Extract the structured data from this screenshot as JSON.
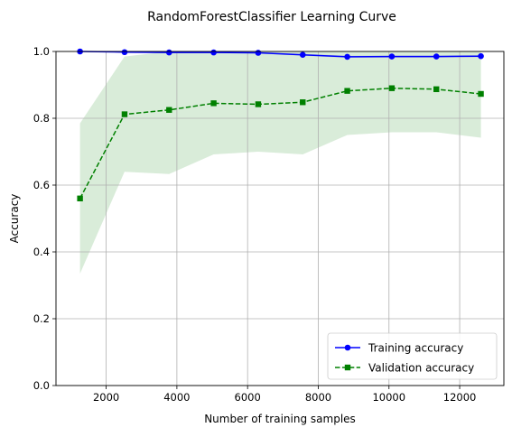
{
  "chart_data": {
    "type": "line",
    "title": "RandomForestClassifier Learning Curve",
    "xlabel": "Number of training samples",
    "ylabel": "Accuracy",
    "xlim": [
      580,
      13250
    ],
    "ylim": [
      0.0,
      1.0
    ],
    "xticks": [
      2000,
      4000,
      6000,
      8000,
      10000,
      12000
    ],
    "yticks": [
      0.0,
      0.2,
      0.4,
      0.6,
      0.8,
      1.0
    ],
    "grid": true,
    "legend_position": "lower-right",
    "x": [
      1260,
      2520,
      3780,
      5040,
      6300,
      7560,
      8820,
      10080,
      11340,
      12600
    ],
    "series": [
      {
        "name": "Training accuracy",
        "color": "#0000ff",
        "linestyle": "solid",
        "marker": "circle",
        "values": [
          1.0,
          0.998,
          0.997,
          0.997,
          0.996,
          0.99,
          0.984,
          0.985,
          0.985,
          0.986
        ],
        "band_lower": [
          1.0,
          0.997,
          0.995,
          0.995,
          0.994,
          0.987,
          0.981,
          0.982,
          0.982,
          0.983
        ],
        "band_upper": [
          1.0,
          0.999,
          0.999,
          0.999,
          0.998,
          0.993,
          0.987,
          0.988,
          0.988,
          0.989
        ],
        "band_color": "#0000ff"
      },
      {
        "name": "Validation accuracy",
        "color": "#008000",
        "linestyle": "dashed",
        "marker": "square",
        "values": [
          0.56,
          0.812,
          0.825,
          0.845,
          0.842,
          0.848,
          0.882,
          0.89,
          0.887,
          0.873
        ],
        "band_lower": [
          0.335,
          0.64,
          0.633,
          0.692,
          0.7,
          0.692,
          0.75,
          0.758,
          0.758,
          0.742
        ],
        "band_upper": [
          0.785,
          0.985,
          1.0,
          1.0,
          1.0,
          1.0,
          1.0,
          1.0,
          1.0,
          1.0
        ],
        "band_color": "#008000"
      }
    ]
  }
}
